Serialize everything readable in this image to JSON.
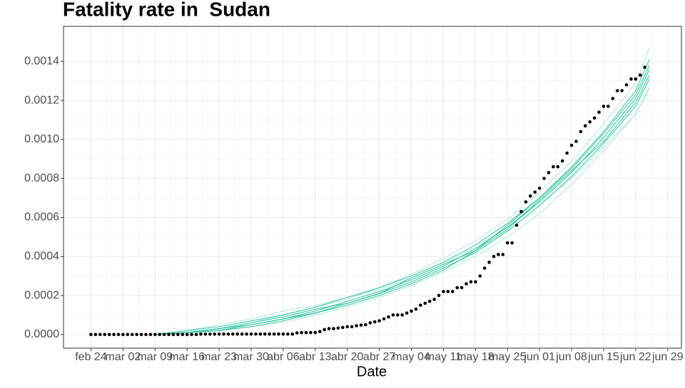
{
  "chart_data": {
    "type": "line",
    "title": "Fatality rate in  Sudan",
    "x_label": "Date",
    "xlim": [
      -6,
      129
    ],
    "ylim": [
      -7e-05,
      0.00158
    ],
    "grid": true,
    "xticks": [
      {
        "value": 0,
        "label": "feb 24"
      },
      {
        "value": 7,
        "label": "mar 02"
      },
      {
        "value": 14,
        "label": "mar 09"
      },
      {
        "value": 21,
        "label": "mar 16"
      },
      {
        "value": 28,
        "label": "mar 23"
      },
      {
        "value": 35,
        "label": "mar 30"
      },
      {
        "value": 42,
        "label": "abr 06"
      },
      {
        "value": 49,
        "label": "abr 13"
      },
      {
        "value": 56,
        "label": "abr 20"
      },
      {
        "value": 63,
        "label": "abr 27"
      },
      {
        "value": 70,
        "label": "may 04"
      },
      {
        "value": 77,
        "label": "may 11"
      },
      {
        "value": 84,
        "label": "may 18"
      },
      {
        "value": 91,
        "label": "may 25"
      },
      {
        "value": 98,
        "label": "jun 01"
      },
      {
        "value": 105,
        "label": "jun 08"
      },
      {
        "value": 112,
        "label": "jun 15"
      },
      {
        "value": 119,
        "label": "jun 22"
      },
      {
        "value": 126,
        "label": "jun 29"
      }
    ],
    "yticks": [
      {
        "value": 0,
        "label": "0.0000"
      },
      0.0002,
      0.0004,
      0.0006,
      0.0008,
      {
        "value": 0.001,
        "label": "0.0010"
      },
      0.0012,
      0.0014
    ],
    "series": [
      {
        "type": "line",
        "color": "#a8e6d6",
        "x": [
          14,
          21,
          28,
          35,
          42,
          49,
          56,
          63,
          70,
          77,
          84,
          91,
          98,
          105,
          112,
          119,
          122
        ],
        "values": [
          0,
          2e-05,
          5e-05,
          8e-05,
          0.00012,
          0.00015,
          0.00019,
          0.00023,
          0.00029,
          0.00036,
          0.00045,
          0.00055,
          0.00067,
          0.0008,
          0.00096,
          0.00113,
          0.00127
        ]
      },
      {
        "type": "line",
        "color": "#a8e6d6",
        "x": [
          14,
          21,
          28,
          35,
          42,
          49,
          56,
          63,
          70,
          77,
          84,
          91,
          98,
          105,
          112,
          119,
          122
        ],
        "values": [
          0,
          1e-05,
          3e-05,
          6e-05,
          0.0001,
          0.00014,
          0.00018,
          0.00024,
          0.00031,
          0.00039,
          0.00048,
          0.00059,
          0.00073,
          0.00089,
          0.00108,
          0.00129,
          0.00147
        ]
      },
      {
        "type": "line",
        "color": "#a8e6d6",
        "x": [
          14,
          21,
          28,
          35,
          42,
          49,
          56,
          63,
          70,
          77,
          84,
          91,
          98,
          105,
          112,
          119,
          122
        ],
        "values": [
          0,
          1e-05,
          2e-05,
          4e-05,
          6e-05,
          0.0001,
          0.00014,
          0.00019,
          0.00025,
          0.00032,
          0.0004,
          0.0005,
          0.00062,
          0.00077,
          0.00094,
          0.00113,
          0.00126
        ]
      },
      {
        "type": "line",
        "color": "#1dbf97",
        "x": [
          14,
          21,
          28,
          35,
          42,
          49,
          56,
          63,
          70,
          77,
          84,
          91,
          98,
          105,
          112,
          119,
          122
        ],
        "values": [
          0,
          1e-05,
          3e-05,
          5e-05,
          8e-05,
          0.00012,
          0.00017,
          0.00022,
          0.00028,
          0.00035,
          0.00044,
          0.00055,
          0.00068,
          0.00083,
          0.00101,
          0.00121,
          0.00136
        ]
      },
      {
        "type": "line",
        "color": "#1dbf97",
        "x": [
          14,
          21,
          28,
          35,
          42,
          49,
          56,
          63,
          70,
          77,
          84,
          91,
          98,
          105,
          112,
          119,
          122
        ],
        "values": [
          0,
          1e-05,
          2e-05,
          4e-05,
          7e-05,
          0.00011,
          0.00016,
          0.00021,
          0.00027,
          0.00034,
          0.00042,
          0.00053,
          0.00066,
          0.00081,
          0.00098,
          0.00117,
          0.00131
        ]
      },
      {
        "type": "line",
        "color": "#1dbf97",
        "x": [
          14,
          21,
          28,
          35,
          42,
          49,
          56,
          63,
          70,
          77,
          84,
          91,
          98,
          105,
          112,
          119,
          122
        ],
        "values": [
          0,
          2e-05,
          4e-05,
          7e-05,
          0.0001,
          0.00014,
          0.00019,
          0.00024,
          0.0003,
          0.00037,
          0.00046,
          0.00057,
          0.0007,
          0.00086,
          0.00104,
          0.00125,
          0.00141
        ]
      },
      {
        "type": "line",
        "color": "#1dbf97",
        "x": [
          14,
          21,
          28,
          35,
          42,
          49,
          56,
          63,
          70,
          77,
          84,
          91,
          98,
          105,
          112,
          119,
          122
        ],
        "values": [
          0,
          1e-05,
          3e-05,
          6e-05,
          9e-05,
          0.00013,
          0.00016,
          0.00021,
          0.00029,
          0.00036,
          0.00043,
          0.00054,
          0.00069,
          0.00084,
          0.00099,
          0.00119,
          0.00133
        ]
      },
      {
        "type": "line",
        "color": "#1dbf97",
        "x": [
          14,
          21,
          28,
          35,
          42,
          49,
          56,
          63,
          70,
          77,
          84,
          91,
          98,
          105,
          112,
          119,
          122
        ],
        "values": [
          0,
          1e-05,
          2e-05,
          5e-05,
          8e-05,
          0.00011,
          0.00015,
          0.0002,
          0.00026,
          0.00033,
          0.00043,
          0.00056,
          0.0007,
          0.00085,
          0.00103,
          0.00123,
          0.00138
        ]
      },
      {
        "type": "scatter",
        "color": "#000000",
        "x": [
          0,
          1,
          2,
          3,
          4,
          5,
          6,
          7,
          8,
          9,
          10,
          11,
          12,
          13,
          14,
          15,
          16,
          17,
          18,
          19,
          20,
          21,
          22,
          23,
          24,
          25,
          26,
          27,
          28,
          29,
          30,
          31,
          32,
          33,
          34,
          35,
          36,
          37,
          38,
          39,
          40,
          41,
          42,
          43,
          44,
          45,
          46,
          47,
          48,
          49,
          50,
          51,
          52,
          53,
          54,
          55,
          56,
          57,
          58,
          59,
          60,
          61,
          62,
          63,
          64,
          65,
          66,
          67,
          68,
          69,
          70,
          71,
          72,
          73,
          74,
          75,
          76,
          77,
          78,
          79,
          80,
          81,
          82,
          83,
          84,
          85,
          86,
          87,
          88,
          89,
          90,
          91,
          92,
          93,
          94,
          95,
          96,
          97,
          98,
          99,
          100,
          101,
          102,
          103,
          104,
          105,
          106,
          107,
          108,
          109,
          110,
          111,
          112,
          113,
          114,
          115,
          116,
          117,
          118,
          119,
          120,
          121
        ],
        "values": [
          0,
          0,
          0,
          0,
          0,
          0,
          0,
          0,
          0,
          0,
          0,
          0,
          0,
          0,
          0,
          0,
          0,
          0,
          0,
          0,
          0,
          0,
          0,
          0,
          2e-06,
          2e-06,
          2e-06,
          2e-06,
          2e-06,
          2e-06,
          2e-06,
          2e-06,
          2e-06,
          2e-06,
          2e-06,
          2e-06,
          2e-06,
          2e-06,
          2e-06,
          2e-06,
          2e-06,
          2e-06,
          2e-06,
          2e-06,
          2e-06,
          8e-06,
          1e-05,
          1e-05,
          1e-05,
          1e-05,
          1.5e-05,
          2.5e-05,
          3e-05,
          3e-05,
          3.3e-05,
          3.6e-05,
          4e-05,
          4e-05,
          4.5e-05,
          4.8e-05,
          5e-05,
          6e-05,
          6.5e-05,
          7e-05,
          8e-05,
          9e-05,
          0.0001,
          0.0001,
          0.0001,
          0.00011,
          0.00012,
          0.00013,
          0.00015,
          0.00016,
          0.00017,
          0.00018,
          0.0002,
          0.00022,
          0.00022,
          0.00022,
          0.00024,
          0.00024,
          0.00026,
          0.00027,
          0.00027,
          0.0003,
          0.00034,
          0.00037,
          0.0004,
          0.00041,
          0.00041,
          0.00047,
          0.00047,
          0.00056,
          0.00063,
          0.00068,
          0.00071,
          0.00073,
          0.00075,
          0.0008,
          0.00083,
          0.00086,
          0.00086,
          0.00089,
          0.00093,
          0.00097,
          0.00099,
          0.00104,
          0.00107,
          0.00109,
          0.00111,
          0.00114,
          0.00117,
          0.00117,
          0.00121,
          0.00125,
          0.00125,
          0.00128,
          0.00131,
          0.00131,
          0.00133,
          0.00137
        ]
      }
    ]
  }
}
